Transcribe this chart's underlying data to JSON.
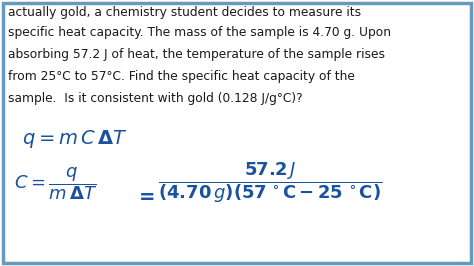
{
  "background_color": "#ffffff",
  "border_color": "#6699bb",
  "text_color_black": "#1a1a1a",
  "text_color_blue": "#1a52a0",
  "top_text": "actually gold, a chemistry student decides to measure its",
  "line1": "specific heat capacity. The mass of the sample is 4.70 g. Upon",
  "line2": "absorbing 57.2 J of heat, the temperature of the sample rises",
  "line3": "from 25°C to 57°C. Find the specific heat capacity of the",
  "line4": "sample.  Is it consistent with gold (0.128 J/g°C)?",
  "fig_width": 4.74,
  "fig_height": 2.66,
  "dpi": 100
}
